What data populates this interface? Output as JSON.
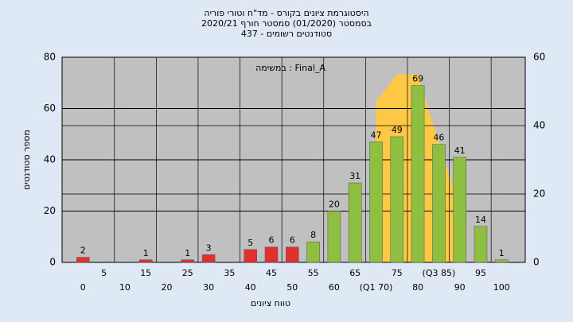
{
  "chart_data": {
    "type": "bar",
    "title": [
      "היסטוגרמת ציונים בקורס - מד\"ח וטורי פוריה",
      "בסמסטר  (01/2020)  סמסטר חורף 2020/21",
      "סטודנטים רשומים - 437"
    ],
    "annotation": "במשימה : Final_A",
    "x_label": "טווח ציונים",
    "y_label": "מספר סטודנטים",
    "categories": [
      "0",
      "5",
      "10",
      "15",
      "20",
      "25",
      "30",
      "35",
      "40",
      "45",
      "50",
      "55",
      "60",
      "65",
      "(Q1 70)",
      "75",
      "80",
      "(Q3 85)",
      "90",
      "95",
      "100"
    ],
    "series": [
      {
        "values": [
          2,
          null,
          null,
          1,
          null,
          1,
          3,
          null,
          5,
          6,
          6,
          8,
          20,
          31,
          47,
          49,
          69,
          46,
          41,
          14,
          1
        ],
        "colors": [
          "#e03030",
          "#e03030",
          "#e03030",
          "#e03030",
          "#e03030",
          "#e03030",
          "#e03030",
          "#e03030",
          "#e03030",
          "#e03030",
          "#e03030",
          "#8fbf40",
          "#8fbf40",
          "#8fbf40",
          "#8fbf40",
          "#8fbf40",
          "#8fbf40",
          "#8fbf40",
          "#8fbf40",
          "#8fbf40",
          "#8fbf40"
        ]
      },
      {
        "axis": "y2",
        "type": "area",
        "color": "#ffc845",
        "values": [
          null,
          null,
          null,
          null,
          null,
          null,
          null,
          null,
          null,
          null,
          null,
          null,
          null,
          null,
          47,
          55,
          55,
          35,
          16,
          null,
          null
        ]
      }
    ],
    "ylim": [
      0,
      80
    ],
    "yticks": [
      0,
      20,
      40,
      60,
      80
    ],
    "y2lim": [
      0,
      60
    ],
    "y2ticks": [
      0,
      20,
      40,
      60
    ],
    "grid": true
  }
}
